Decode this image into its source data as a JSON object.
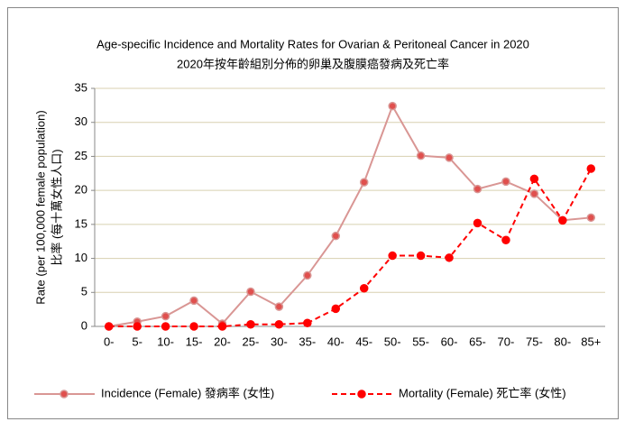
{
  "chart_data": {
    "type": "line",
    "title": "Age-specific Incidence and Mortality Rates for Ovarian & Peritoneal Cancer in 2020",
    "subtitle": "2020年按年齡組別分佈的卵巢及腹膜癌發病及死亡率",
    "ylabel": [
      "Rate (per 100,000 female population)",
      "比率 (每十萬女性人口)"
    ],
    "categories": [
      "0-",
      "5-",
      "10-",
      "15-",
      "20-",
      "25-",
      "30-",
      "35-",
      "40-",
      "45-",
      "50-",
      "55-",
      "60-",
      "65-",
      "70-",
      "75-",
      "80-",
      "85+"
    ],
    "series": [
      {
        "name": "Incidence (Female) 發病率 (女性)",
        "color": "#d99694",
        "marker_color": "#e0504e",
        "dashed": false,
        "values": [
          0,
          0.7,
          1.5,
          3.8,
          0.4,
          5.1,
          2.9,
          7.5,
          13.3,
          21.2,
          32.4,
          25.1,
          24.8,
          20.2,
          21.3,
          19.5,
          15.6,
          16.0
        ]
      },
      {
        "name": "Mortality (Female) 死亡率 (女性)",
        "color": "#ff0000",
        "marker_color": "#ff0000",
        "dashed": true,
        "values": [
          0,
          0,
          0,
          0,
          0,
          0.3,
          0.3,
          0.5,
          2.6,
          5.6,
          10.4,
          10.4,
          10.1,
          15.2,
          12.7,
          21.7,
          15.6,
          23.2
        ]
      }
    ],
    "ylim": [
      0,
      35
    ],
    "yticks": [
      0,
      5,
      10,
      15,
      20,
      25,
      30,
      35
    ],
    "grid": true
  }
}
